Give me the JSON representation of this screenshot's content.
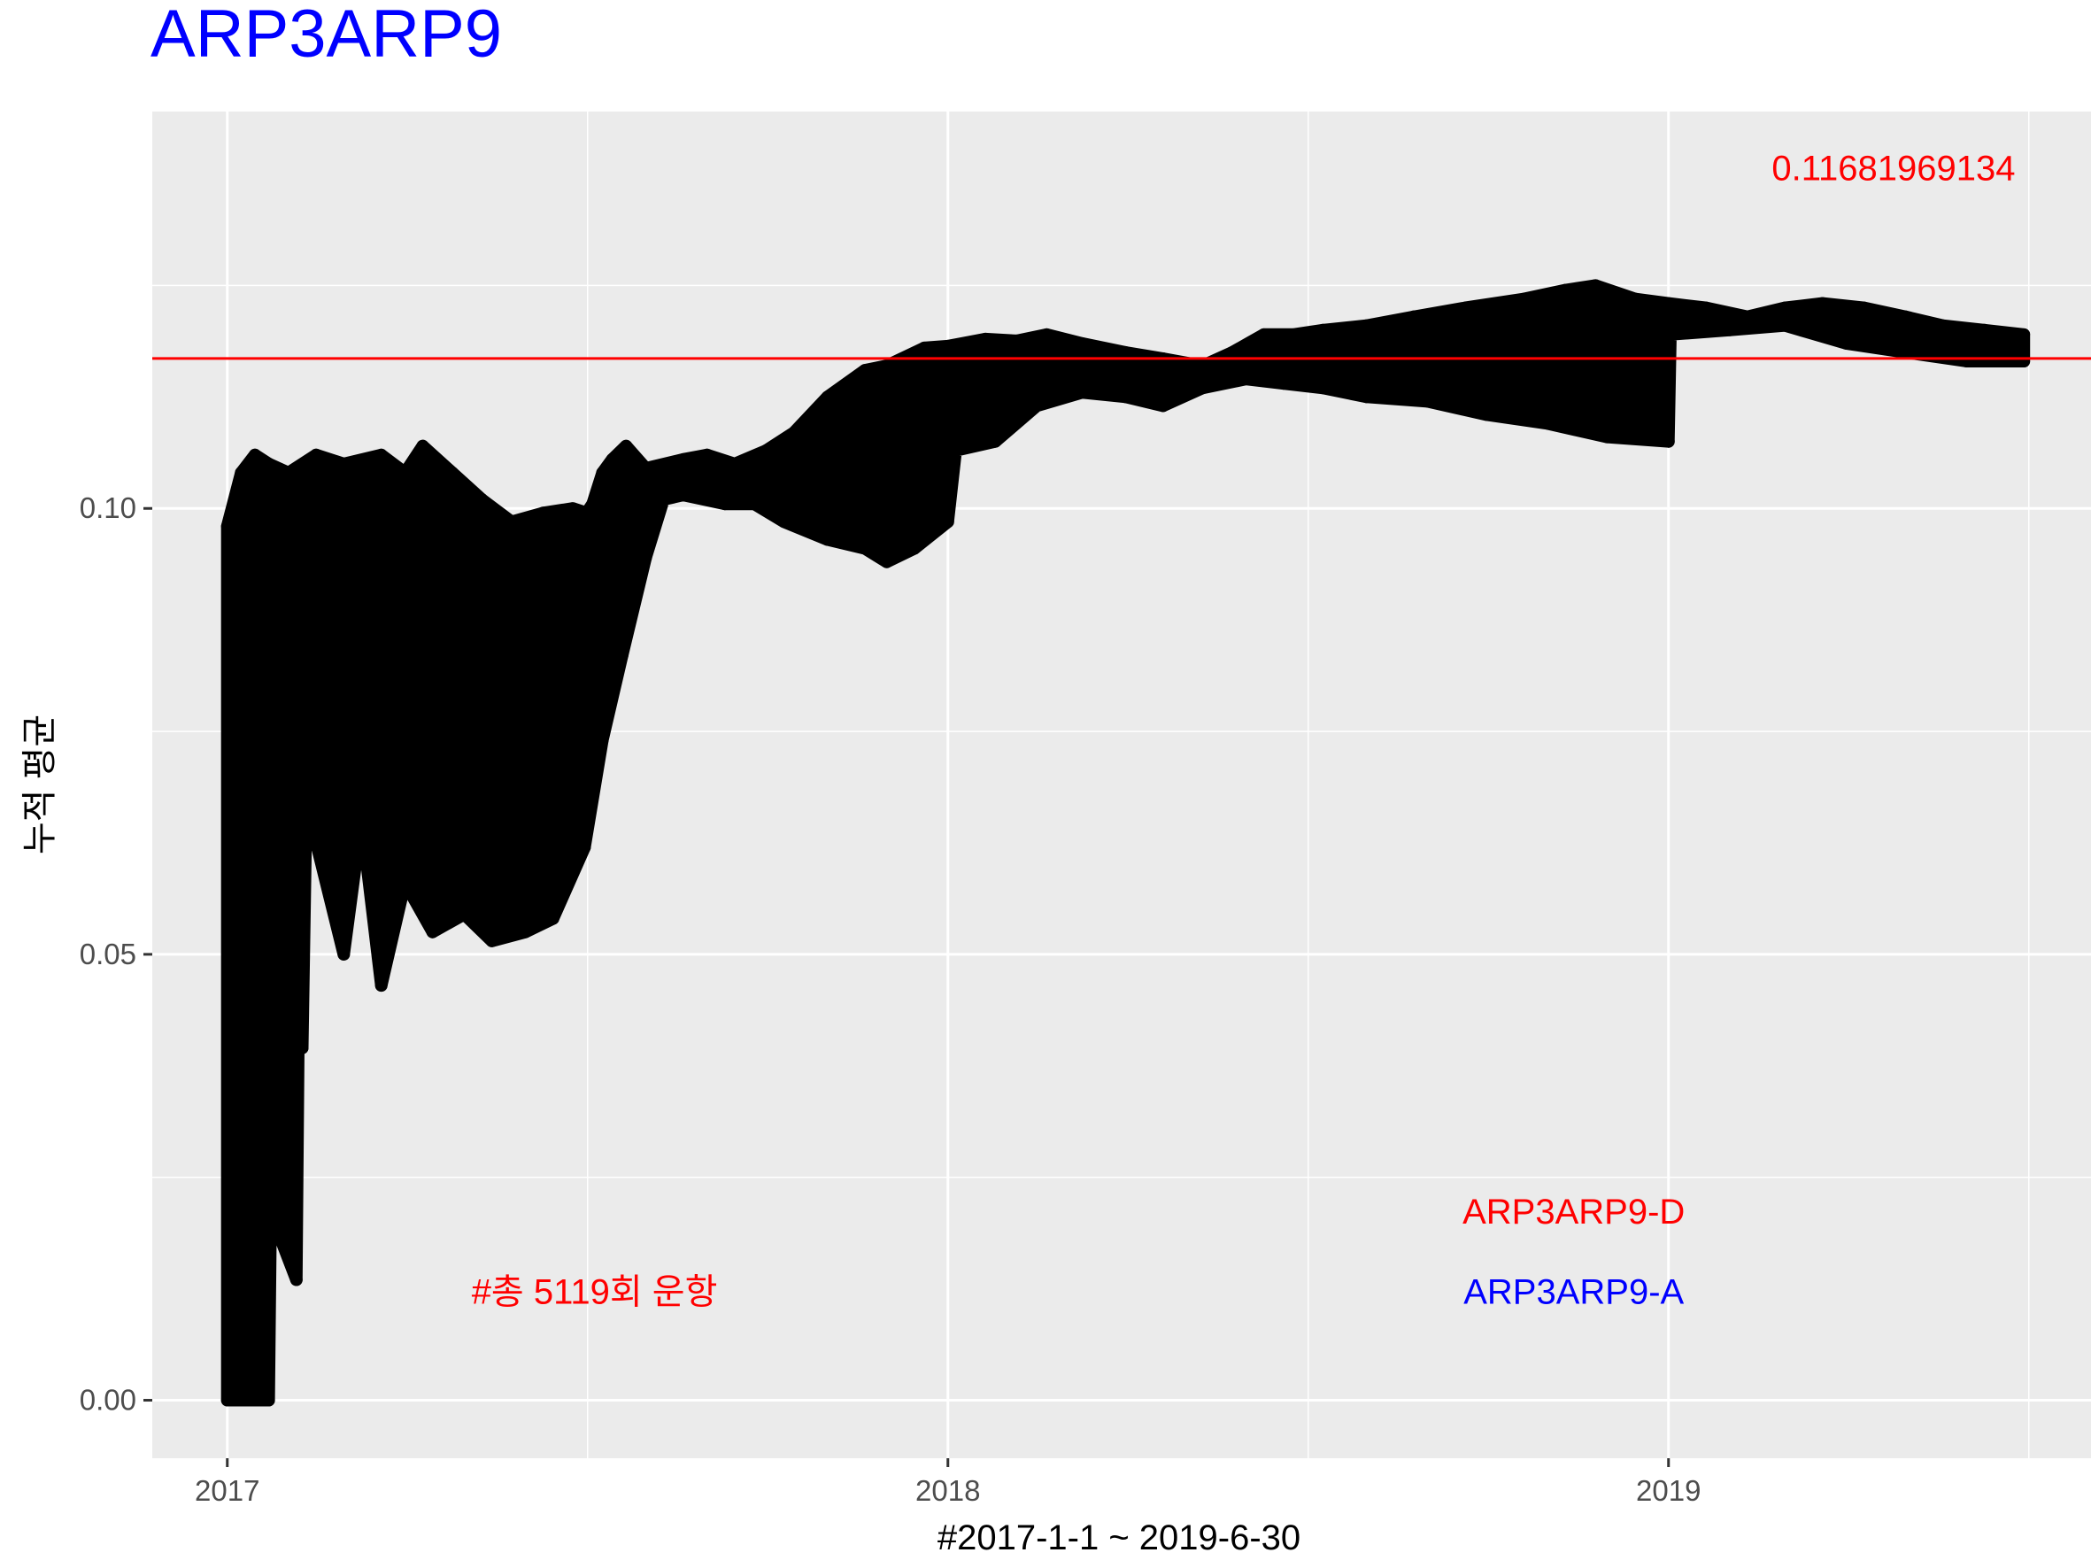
{
  "chart_data": {
    "type": "scatter",
    "title": "ARP3ARP9",
    "title_color": "#0000FF",
    "xlabel": "#2017-1-1 ~ 2019-6-30",
    "ylabel": "누적 평균",
    "x_range": [
      "2016-11-24",
      "2019-08-03"
    ],
    "ylim": [
      -0.0065,
      0.1445
    ],
    "x_ticks": [
      {
        "label": "2017",
        "date": "2017-01-01"
      },
      {
        "label": "2018",
        "date": "2018-01-01"
      },
      {
        "label": "2019",
        "date": "2019-01-01"
      }
    ],
    "y_ticks": [
      {
        "label": "0.00",
        "value": 0.0
      },
      {
        "label": "0.05",
        "value": 0.05
      },
      {
        "label": "0.10",
        "value": 0.1
      }
    ],
    "grid": true,
    "panel_background": "#EBEBEB",
    "point_color": "#000000",
    "reference_line": {
      "y": 0.1168196913,
      "color": "#FF0000"
    },
    "annotations": [
      {
        "text": "0.11681969134",
        "color": "#FF0000",
        "anchor_date": "2019-04-25",
        "anchor_y": 0.1368
      },
      {
        "text": "ARP3ARP9-D",
        "color": "#FF0000",
        "anchor_date": "2018-11-14",
        "anchor_y": 0.0198
      },
      {
        "text": "ARP3ARP9-A",
        "color": "#0000FF",
        "anchor_date": "2018-11-14",
        "anchor_y": 0.0108
      },
      {
        "text": "#총 5119회 운항",
        "color": "#FF0000",
        "anchor_date": "2017-07-06",
        "anchor_y": 0.0108
      }
    ],
    "series": [
      {
        "upper": [
          [
            "2017-01-01",
            0.098
          ],
          [
            "2017-01-08",
            0.104
          ],
          [
            "2017-01-15",
            0.106
          ],
          [
            "2017-01-22",
            0.105
          ],
          [
            "2017-02-01",
            0.104
          ],
          [
            "2017-02-15",
            0.106
          ],
          [
            "2017-03-01",
            0.105
          ],
          [
            "2017-03-20",
            0.106
          ],
          [
            "2017-04-01",
            0.104
          ],
          [
            "2017-04-10",
            0.107
          ],
          [
            "2017-04-25",
            0.104
          ],
          [
            "2017-05-10",
            0.101
          ],
          [
            "2017-05-25",
            0.0985
          ],
          [
            "2017-06-10",
            0.0995
          ],
          [
            "2017-06-25",
            0.1
          ],
          [
            "2017-07-02",
            0.0995
          ],
          [
            "2017-07-05",
            0.1005
          ],
          [
            "2017-07-10",
            0.104
          ],
          [
            "2017-07-15",
            0.1055
          ],
          [
            "2017-07-22",
            0.107
          ],
          [
            "2017-08-01",
            0.1045
          ],
          [
            "2017-08-20",
            0.1055
          ],
          [
            "2017-09-01",
            0.106
          ],
          [
            "2017-09-15",
            0.105
          ],
          [
            "2017-10-01",
            0.1065
          ],
          [
            "2017-10-15",
            0.1085
          ],
          [
            "2017-11-01",
            0.1125
          ],
          [
            "2017-11-20",
            0.1155
          ],
          [
            "2017-12-01",
            0.116
          ],
          [
            "2017-12-20",
            0.118
          ],
          [
            "2018-01-01",
            0.1182
          ],
          [
            "2018-01-20",
            0.119
          ],
          [
            "2018-02-05",
            0.1188
          ],
          [
            "2018-02-20",
            0.1195
          ],
          [
            "2018-03-10",
            0.1185
          ],
          [
            "2018-04-01",
            0.1175
          ],
          [
            "2018-04-20",
            0.1168
          ],
          [
            "2018-05-10",
            0.116
          ],
          [
            "2018-05-25",
            0.1175
          ],
          [
            "2018-06-10",
            0.1195
          ],
          [
            "2018-06-25",
            0.1195
          ],
          [
            "2018-07-10",
            0.12
          ],
          [
            "2018-08-01",
            0.1205
          ],
          [
            "2018-08-25",
            0.1215
          ],
          [
            "2018-09-20",
            0.1225
          ],
          [
            "2018-10-20",
            0.1235
          ],
          [
            "2018-11-10",
            0.1245
          ],
          [
            "2018-11-25",
            0.125
          ],
          [
            "2018-12-15",
            0.1235
          ],
          [
            "2019-01-01",
            0.123
          ],
          [
            "2019-01-20",
            0.1225
          ],
          [
            "2019-02-10",
            0.1215
          ],
          [
            "2019-03-01",
            0.1225
          ],
          [
            "2019-03-20",
            0.123
          ],
          [
            "2019-04-10",
            0.1225
          ],
          [
            "2019-05-01",
            0.1215
          ],
          [
            "2019-05-20",
            0.1205
          ],
          [
            "2019-06-10",
            0.12
          ],
          [
            "2019-06-30",
            0.1195
          ]
        ],
        "lower": [
          [
            "2017-01-01",
            0.0
          ],
          [
            "2017-01-15",
            0.0
          ],
          [
            "2017-01-22",
            0.0
          ],
          [
            "2017-01-23",
            0.021
          ],
          [
            "2017-02-05",
            0.0135
          ],
          [
            "2017-02-06",
            0.0395
          ],
          [
            "2017-02-08",
            0.0395
          ],
          [
            "2017-02-10",
            0.067
          ],
          [
            "2017-03-01",
            0.05
          ],
          [
            "2017-03-10",
            0.065
          ],
          [
            "2017-03-20",
            0.0465
          ],
          [
            "2017-04-01",
            0.058
          ],
          [
            "2017-04-15",
            0.0525
          ],
          [
            "2017-05-01",
            0.0545
          ],
          [
            "2017-05-15",
            0.0515
          ],
          [
            "2017-06-01",
            0.0525
          ],
          [
            "2017-06-15",
            0.054
          ],
          [
            "2017-07-01",
            0.062
          ],
          [
            "2017-07-10",
            0.074
          ],
          [
            "2017-07-20",
            0.0835
          ],
          [
            "2017-08-01",
            0.0945
          ],
          [
            "2017-08-10",
            0.101
          ],
          [
            "2017-08-20",
            0.1015
          ],
          [
            "2017-09-10",
            0.1005
          ],
          [
            "2017-09-25",
            0.1005
          ],
          [
            "2017-10-10",
            0.0985
          ],
          [
            "2017-11-01",
            0.0965
          ],
          [
            "2017-11-20",
            0.0955
          ],
          [
            "2017-12-01",
            0.094
          ],
          [
            "2017-12-15",
            0.0955
          ],
          [
            "2018-01-01",
            0.0985
          ],
          [
            "2018-01-05",
            0.1065
          ],
          [
            "2018-01-25",
            0.1075
          ],
          [
            "2018-02-15",
            0.1115
          ],
          [
            "2018-03-10",
            0.113
          ],
          [
            "2018-04-01",
            0.1125
          ],
          [
            "2018-04-20",
            0.1115
          ],
          [
            "2018-05-10",
            0.1135
          ],
          [
            "2018-06-01",
            0.1145
          ],
          [
            "2018-06-20",
            0.114
          ],
          [
            "2018-07-10",
            0.1135
          ],
          [
            "2018-08-01",
            0.1125
          ],
          [
            "2018-09-01",
            0.112
          ],
          [
            "2018-10-01",
            0.1105
          ],
          [
            "2018-11-01",
            0.1095
          ],
          [
            "2018-12-01",
            0.108
          ],
          [
            "2019-01-01",
            0.1075
          ],
          [
            "2019-01-02",
            0.1195
          ],
          [
            "2019-02-01",
            0.12
          ],
          [
            "2019-03-01",
            0.1205
          ],
          [
            "2019-04-01",
            0.1185
          ],
          [
            "2019-05-01",
            0.1175
          ],
          [
            "2019-06-01",
            0.1165
          ],
          [
            "2019-06-30",
            0.1165
          ]
        ]
      }
    ]
  }
}
